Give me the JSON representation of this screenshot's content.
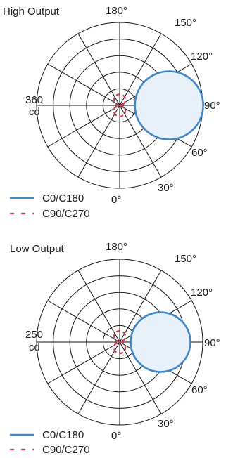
{
  "colors": {
    "c0": "#3f86c6",
    "c0_fill": "#e8f0fa",
    "c90": "#cc3f55",
    "grid": "#111111"
  },
  "legend": {
    "c0_label": "C0/C180",
    "c90_label": "C90/C270"
  },
  "chart_data": [
    {
      "type": "polar",
      "title": "High Output",
      "radial_label_value": "360",
      "radial_label_unit": "cd",
      "angle_ticks": [
        "180°",
        "150°",
        "120°",
        "90°",
        "60°",
        "30°",
        "0°"
      ],
      "rings": 5,
      "r_max": 360,
      "series": [
        {
          "name": "C0/C180",
          "shape": "circle",
          "center_value": 214,
          "radius_value": 148
        },
        {
          "name": "C90/C270",
          "shape": "figure-eight",
          "lobe_value": 48
        }
      ]
    },
    {
      "type": "polar",
      "title": "Low Output",
      "radial_label_value": "250",
      "radial_label_unit": "cd",
      "angle_ticks": [
        "180°",
        "150°",
        "120°",
        "90°",
        "60°",
        "30°",
        "0°"
      ],
      "rings": 5,
      "r_max": 250,
      "series": [
        {
          "name": "C0/C180",
          "shape": "circle",
          "center_value": 123,
          "radius_value": 90
        },
        {
          "name": "C90/C270",
          "shape": "figure-eight",
          "lobe_value": 34
        }
      ]
    }
  ]
}
